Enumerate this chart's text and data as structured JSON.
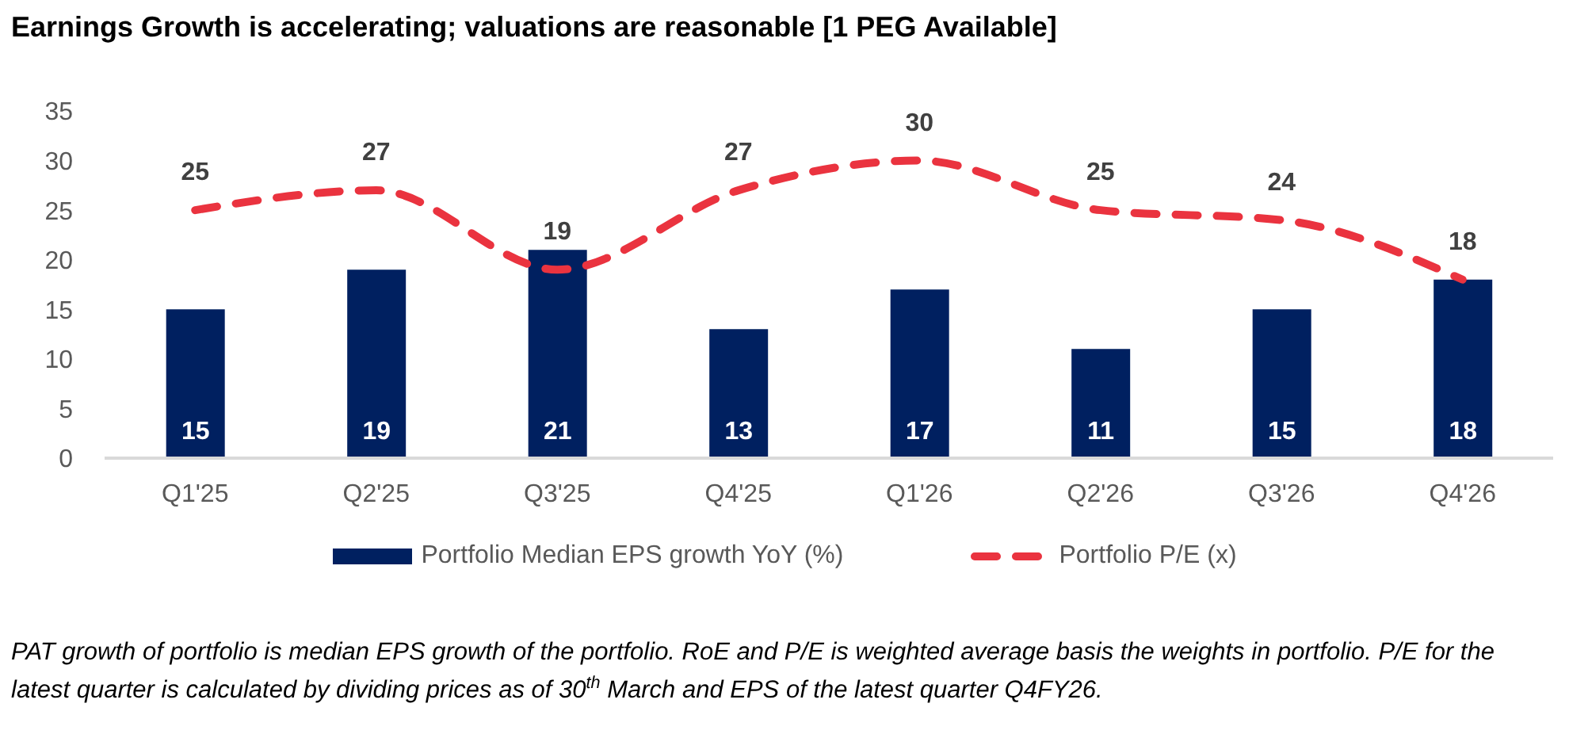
{
  "chart_data": {
    "type": "bar",
    "title": "Earnings Growth is accelerating; valuations are reasonable [1 PEG Available]",
    "categories": [
      "Q1'25",
      "Q2'25",
      "Q3'25",
      "Q4'25",
      "Q1'26",
      "Q2'26",
      "Q3'26",
      "Q4'26"
    ],
    "series": [
      {
        "name": "Portfolio Median EPS growth YoY (%)",
        "color": "#002060",
        "values": [
          15,
          19,
          21,
          13,
          17,
          11,
          15,
          18
        ]
      },
      {
        "name": "Portfolio P/E (x)",
        "type": "line",
        "color": "#ea333f",
        "line_style": "dashed",
        "values": [
          25,
          27,
          19,
          27,
          30,
          25,
          24,
          18
        ]
      }
    ],
    "ylim": [
      0,
      35
    ],
    "yticks": [
      0,
      5,
      10,
      15,
      20,
      25,
      30,
      35
    ],
    "legend": "bottom",
    "data_labels": true,
    "annotations": [
      "PAT growth of portfolio is median EPS growth of the portfolio. RoE and P/E is weighted average basis the weights in portfolio. P/E for the latest quarter is calculated by dividing prices as of 30$^{th}$ March and EPS of the latest quarter Q4FY26."
    ]
  }
}
